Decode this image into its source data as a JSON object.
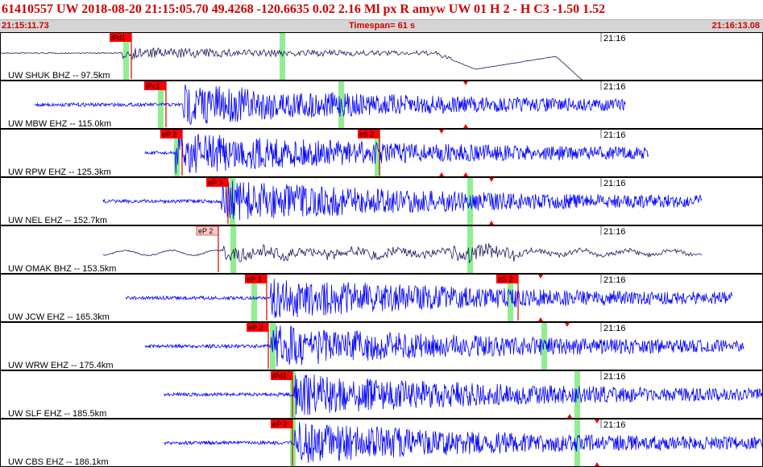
{
  "header": {
    "event_line": "61410557 UW 2018-08-20 21:15:05.70   49.4268 -120.6635   0.02  2.16 Ml  px  R amyw     UW 01  H   2  -  H C3   -1.50  1.52",
    "start_time": "21:15:11.73",
    "timespan": "Timespan=  61 s",
    "end_time": "21:16:13.08"
  },
  "colors": {
    "trace_blue": "#0000ff",
    "trace_navy": "#1a1a5a",
    "pick_box": "#ff0000",
    "pick_box_light": "#ffc8c8",
    "pick_line": "#d00000",
    "green_window": "#90ee90",
    "header_text": "#d00000"
  },
  "panels": [
    {
      "label": "UW SHUK BHZ -- 97.5km",
      "time_tick": "21:16",
      "trace": "navy",
      "picks": [
        {
          "text": "iPd1"
        }
      ],
      "start": 0.0,
      "onset": 0.16,
      "end": 0.78
    },
    {
      "label": "UW MBW EHZ -- 115.0km",
      "time_tick": "21:16",
      "trace": "blue",
      "picks": [
        {
          "text": "iPc1"
        }
      ],
      "start": 0.045,
      "onset": 0.24,
      "end": 0.82
    },
    {
      "label": "UW RPW EHZ -- 125.3km",
      "time_tick": "21:16",
      "trace": "blue",
      "picks": [
        {
          "text": "eP 2"
        },
        {
          "text": "eS 2"
        }
      ],
      "start": 0.19,
      "onset": 0.23,
      "end": 0.85
    },
    {
      "label": "UW NEL EHZ -- 152.7km",
      "time_tick": "21:16",
      "trace": "blue",
      "picks": [
        {
          "text": "eP 3"
        }
      ],
      "start": 0.135,
      "onset": 0.29,
      "end": 0.92
    },
    {
      "label": "UW OMAK BHZ -- 153.5km",
      "time_tick": "21:16",
      "trace": "navy",
      "picks": [
        {
          "text": "eP 2"
        }
      ],
      "start": 0.135,
      "onset": 0.29,
      "end": 0.92
    },
    {
      "label": "UW JCW EHZ -- 165.3km",
      "time_tick": "21:16",
      "trace": "blue",
      "picks": [
        {
          "text": "eP 3"
        },
        {
          "text": "eS 2"
        }
      ],
      "start": 0.165,
      "onset": 0.355,
      "end": 0.96
    },
    {
      "label": "UW WRW EHZ -- 175.4km",
      "time_tick": "21:16",
      "trace": "blue",
      "picks": [
        {
          "text": "eP 2"
        }
      ],
      "start": 0.19,
      "onset": 0.355,
      "end": 0.975
    },
    {
      "label": "UW SLF EHZ -- 185.5km",
      "time_tick": "21:16",
      "trace": "blue",
      "picks": [
        {
          "text": "iPd1"
        }
      ],
      "start": 0.215,
      "onset": 0.385,
      "end": 1.0
    },
    {
      "label": "UW CBS EHZ -- 186.1km",
      "time_tick": "21:16",
      "trace": "blue",
      "picks": [
        {
          "text": "eP 2"
        }
      ],
      "start": 0.215,
      "onset": 0.385,
      "end": 1.0
    }
  ]
}
